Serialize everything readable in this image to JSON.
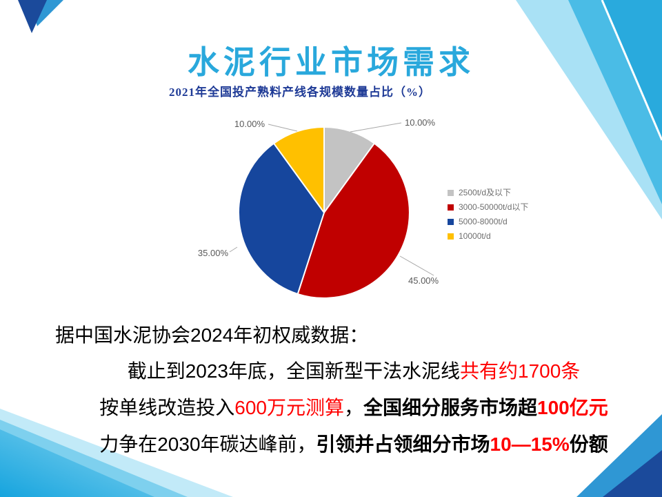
{
  "slide": {
    "title": "水泥行业市场需求",
    "title_color": "#29A8DC"
  },
  "chart_data": {
    "type": "pie",
    "title": "2021年全国投产熟料产线各规模数量占比（%）",
    "title_color": "#1E3A96",
    "categories": [
      "2500t/d及以下",
      "3000-50000t/d以下",
      "5000-8000t/d",
      "10000t/d"
    ],
    "values": [
      10,
      45,
      35,
      10
    ],
    "labels": [
      "10.00%",
      "45.00%",
      "35.00%",
      "10.00%"
    ],
    "colors": [
      "#C3C3C3",
      "#C00000",
      "#16469D",
      "#FFC000"
    ],
    "start_angle_deg": 0,
    "direction": "clockwise",
    "legend_position": "right",
    "label_color": "#595959",
    "leader_line_color": "#A8A8A8",
    "legend_text_color": "#6E6E6E"
  },
  "body": {
    "default_color": "#000000",
    "highlight_color": "#FF0000",
    "lines": [
      {
        "align": "left",
        "segments": [
          {
            "t": "据中国水泥协会2024年初权威数据：",
            "red": false,
            "bold": false
          }
        ]
      },
      {
        "align": "center",
        "segments": [
          {
            "t": "截止到2023年底，全国新型干法水泥线",
            "red": false,
            "bold": false
          },
          {
            "t": "共有约1700条",
            "red": true,
            "bold": false
          }
        ]
      },
      {
        "align": "center",
        "segments": [
          {
            "t": "按单线改造投入",
            "red": false,
            "bold": false
          },
          {
            "t": "600万元测算",
            "red": true,
            "bold": false
          },
          {
            "t": "，",
            "red": false,
            "bold": false
          },
          {
            "t": "全国细分服务市场超",
            "red": false,
            "bold": true
          },
          {
            "t": "100亿元",
            "red": true,
            "bold": true
          }
        ]
      },
      {
        "align": "center",
        "segments": [
          {
            "t": "力争在2030年碳达峰前，",
            "red": false,
            "bold": false
          },
          {
            "t": "引领并占领细分市场",
            "red": false,
            "bold": true
          },
          {
            "t": "10—15%",
            "red": true,
            "bold": true
          },
          {
            "t": "份额",
            "red": false,
            "bold": true
          }
        ]
      }
    ]
  },
  "decor": {
    "tr_pale": "#A9E1F5",
    "tr_mid": "#4ABCE6",
    "tr_deep": "#29AADD",
    "bl_pale": "#C2EAF8",
    "bl_light": "#7ED0EE",
    "bl_grad_start": "#16A4DE",
    "bl_grad_end": "#8AD6F1",
    "corner_blue_dark": "#1B4A9B",
    "corner_blue_light": "#2F97D4"
  }
}
